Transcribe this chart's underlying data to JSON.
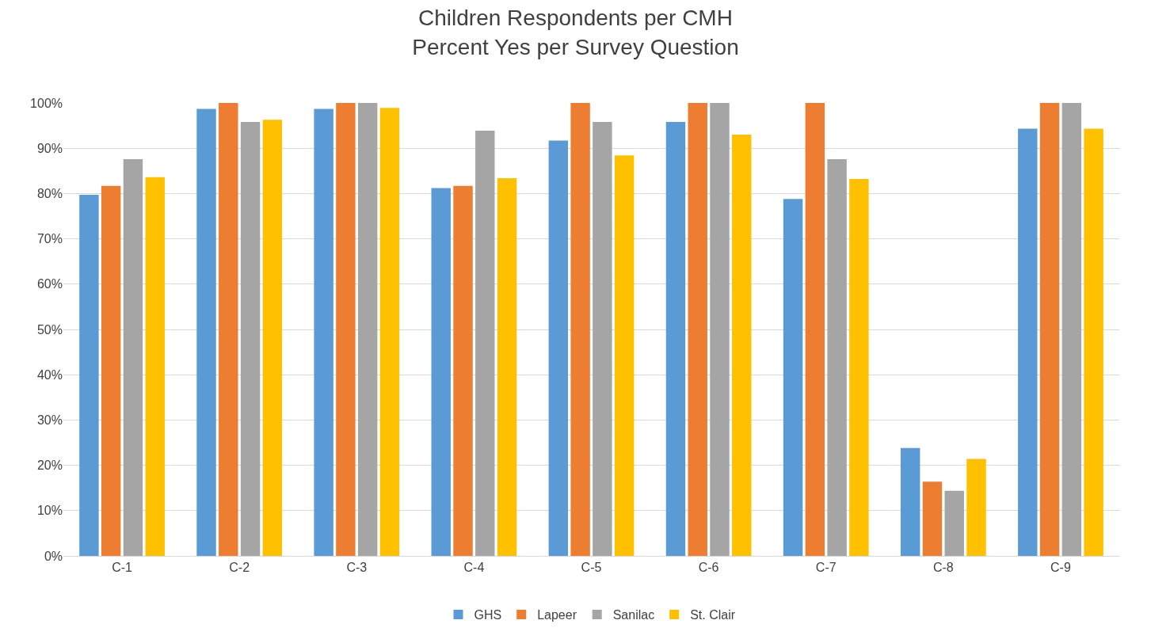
{
  "chart_data": {
    "type": "bar",
    "title": "Children Respondents per CMH\nPercent Yes per Survey Question",
    "categories": [
      "C-1",
      "C-2",
      "C-3",
      "C-4",
      "C-5",
      "C-6",
      "C-7",
      "C-8",
      "C-9"
    ],
    "series": [
      {
        "name": "GHS",
        "color": "#5b9bd5",
        "values": [
          79.7,
          98.7,
          98.7,
          81.2,
          91.7,
          95.8,
          78.8,
          23.8,
          94.3
        ]
      },
      {
        "name": "Lapeer",
        "color": "#ed7d31",
        "values": [
          81.7,
          100,
          100,
          81.7,
          100,
          100,
          100,
          16.4,
          100
        ]
      },
      {
        "name": "Sanilac",
        "color": "#a5a5a5",
        "values": [
          87.6,
          95.8,
          100,
          93.9,
          95.8,
          100,
          87.6,
          14.4,
          100
        ]
      },
      {
        "name": "St. Clair",
        "color": "#ffc000",
        "values": [
          83.6,
          96.3,
          98.9,
          83.4,
          88.4,
          93.0,
          83.2,
          21.4,
          94.3
        ]
      }
    ],
    "ylim": [
      0,
      100
    ],
    "yticks": [
      {
        "value": 0,
        "label": "0%"
      },
      {
        "value": 10,
        "label": "10%"
      },
      {
        "value": 20,
        "label": "20%"
      },
      {
        "value": 30,
        "label": "30%"
      },
      {
        "value": 40,
        "label": "40%"
      },
      {
        "value": 50,
        "label": "50%"
      },
      {
        "value": 60,
        "label": "60%"
      },
      {
        "value": 70,
        "label": "70%"
      },
      {
        "value": 80,
        "label": "80%"
      },
      {
        "value": 90,
        "label": "90%"
      },
      {
        "value": 100,
        "label": "100%"
      }
    ],
    "grid": "y",
    "legend": "bottom"
  }
}
